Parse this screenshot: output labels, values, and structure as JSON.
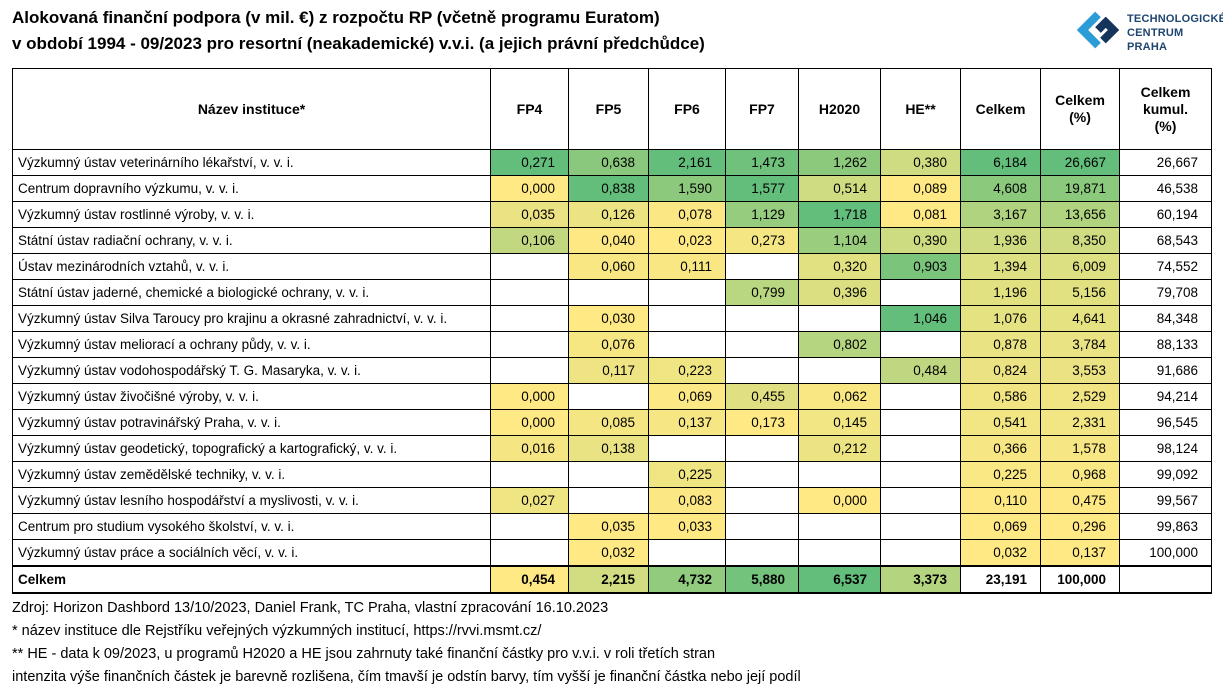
{
  "header": {
    "title_line1": "Alokovaná finanční podpora (v mil. €) z rozpočtu RP (včetně programu Euratom)",
    "title_line2": "v období 1994 - 09/2023 pro resortní (neakademické) v.v.i. (a jejich právní předchůdce)"
  },
  "logo": {
    "line1": "TECHNOLOGICKÉ",
    "line2": "CENTRUM PRAHA",
    "mark_light_blue": "#2B9CD8",
    "mark_navy": "#16355C",
    "text_color": "#1F4570"
  },
  "chart_data": {
    "type": "table",
    "title": "Alokovaná finanční podpora (v mil. €) z rozpočtu RP (včetně programu Euratom) v období 1994 - 09/2023 pro resortní (neakademické) v.v.i. (a jejich právní předchůdce)",
    "value_unit": "mil. €",
    "columns": [
      {
        "key": "institution",
        "name": "Název instituce*",
        "display": "Název instituce*"
      },
      {
        "key": "fp4",
        "name": "FP4",
        "display": "FP4"
      },
      {
        "key": "fp5",
        "name": "FP5",
        "display": "FP5"
      },
      {
        "key": "fp6",
        "name": "FP6",
        "display": "FP6"
      },
      {
        "key": "fp7",
        "name": "FP7",
        "display": "FP7"
      },
      {
        "key": "h2020",
        "name": "H2020",
        "display": "H2020"
      },
      {
        "key": "he",
        "name": "HE**",
        "display": "HE**"
      },
      {
        "key": "celkem",
        "name": "Celkem",
        "display": "Celkem"
      },
      {
        "key": "celkem_pct",
        "name": "Celkem (%)",
        "display": "Celkem\n(%)"
      },
      {
        "key": "kumul",
        "name": "Celkem kumul. (%)",
        "display": "Celkem\nkumul.\n(%)"
      }
    ],
    "rows": [
      [
        "Výzkumný ústav veterinárního lékařství, v. v. i.",
        "0,271",
        "0,638",
        "2,161",
        "1,473",
        "1,262",
        "0,380",
        "6,184",
        "26,667",
        "26,667"
      ],
      [
        "Centrum dopravního výzkumu, v. v. i.",
        "0,000",
        "0,838",
        "1,590",
        "1,577",
        "0,514",
        "0,089",
        "4,608",
        "19,871",
        "46,538"
      ],
      [
        "Výzkumný ústav rostlinné výroby, v. v. i.",
        "0,035",
        "0,126",
        "0,078",
        "1,129",
        "1,718",
        "0,081",
        "3,167",
        "13,656",
        "60,194"
      ],
      [
        "Státní ústav radiační ochrany, v. v. i.",
        "0,106",
        "0,040",
        "0,023",
        "0,273",
        "1,104",
        "0,390",
        "1,936",
        "8,350",
        "68,543"
      ],
      [
        "Ústav mezinárodních vztahů, v. v. i.",
        "",
        "0,060",
        "0,111",
        "",
        "0,320",
        "0,903",
        "1,394",
        "6,009",
        "74,552"
      ],
      [
        "Státní ústav jaderné, chemické a biologické ochrany, v. v. i.",
        "",
        "",
        "",
        "0,799",
        "0,396",
        "",
        "1,196",
        "5,156",
        "79,708"
      ],
      [
        "Výzkumný ústav Silva Taroucy pro krajinu a okrasné zahradnictví, v. v. i.",
        "",
        "0,030",
        "",
        "",
        "",
        "1,046",
        "1,076",
        "4,641",
        "84,348"
      ],
      [
        "Výzkumný ústav meliorací a ochrany půdy, v. v. i.",
        "",
        "0,076",
        "",
        "",
        "0,802",
        "",
        "0,878",
        "3,784",
        "88,133"
      ],
      [
        "Výzkumný ústav vodohospodářský T. G. Masaryka, v. v. i.",
        "",
        "0,117",
        "0,223",
        "",
        "",
        "0,484",
        "0,824",
        "3,553",
        "91,686"
      ],
      [
        "Výzkumný ústav živočišné výroby, v. v. i.",
        "0,000",
        "",
        "0,069",
        "0,455",
        "0,062",
        "",
        "0,586",
        "2,529",
        "94,214"
      ],
      [
        "Výzkumný ústav potravinářský Praha, v. v. i.",
        "0,000",
        "0,085",
        "0,137",
        "0,173",
        "0,145",
        "",
        "0,541",
        "2,331",
        "96,545"
      ],
      [
        "Výzkumný ústav geodetický, topografický a kartografický, v. v. i.",
        "0,016",
        "0,138",
        "",
        "",
        "0,212",
        "",
        "0,366",
        "1,578",
        "98,124"
      ],
      [
        "Výzkumný ústav zemědělské techniky, v. v. i.",
        "",
        "",
        "0,225",
        "",
        "",
        "",
        "0,225",
        "0,968",
        "99,092"
      ],
      [
        "Výzkumný ústav lesního hospodářství a myslivosti, v. v. i.",
        "0,027",
        "",
        "0,083",
        "",
        "0,000",
        "",
        "0,110",
        "0,475",
        "99,567"
      ],
      [
        "Centrum pro studium vysokého školství, v. v. i.",
        "",
        "0,035",
        "0,033",
        "",
        "",
        "",
        "0,069",
        "0,296",
        "99,863"
      ],
      [
        "Výzkumný ústav práce a sociálních věcí, v. v. i.",
        "",
        "0,032",
        "",
        "",
        "",
        "",
        "0,032",
        "0,137",
        "100,000"
      ]
    ],
    "total_row": [
      "Celkem",
      "0,454",
      "2,215",
      "4,732",
      "5,880",
      "6,537",
      "3,373",
      "23,191",
      "100,000",
      ""
    ],
    "heatmap": {
      "description": "per-column yellow-to-green scale; total row scaled across FP4–HE",
      "min_color": "#FFE984",
      "max_color": "#63BE7B"
    }
  },
  "footnotes": [
    "Zdroj: Horizon Dashbord 13/10/2023, Daniel Frank, TC Praha, vlastní zpracování 16.10.2023",
    "* název instituce dle  Rejstříku veřejných výzkumných institucí, https://rvvi.msmt.cz/",
    "** HE - data k 09/2023, u programů H2020 a HE jsou zahrnuty také finanční částky pro v.v.i. v roli třetích stran",
    "intenzita výše finančních částek je barevně rozlišena, čím tmavší je odstín barvy, tím vyšší je finanční částka nebo její podíl"
  ]
}
